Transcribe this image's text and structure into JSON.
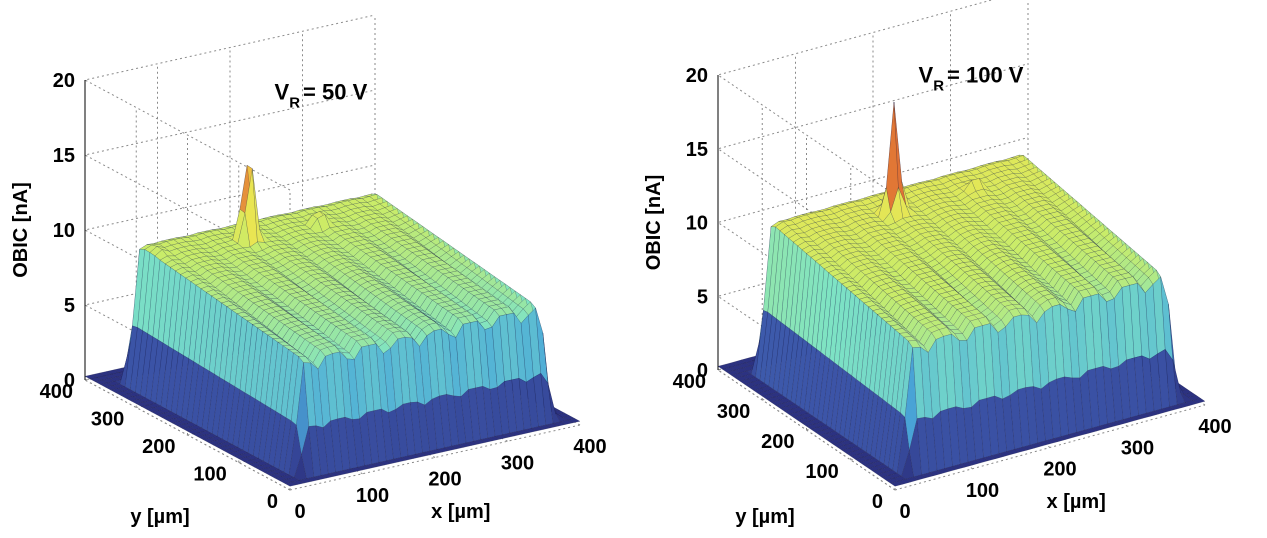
{
  "chart_data": [
    {
      "type": "surface3d",
      "zlabel": "OBIC [nA]",
      "xlabel": "x [µm]",
      "ylabel": "y [µm]",
      "annotation": {
        "main": "V",
        "subscript": "R",
        "value": "= 50 V"
      },
      "xlim": [
        0,
        400
      ],
      "ylim": [
        0,
        400
      ],
      "zlim": [
        0,
        20
      ],
      "x_ticks": [
        0,
        100,
        200,
        300,
        400
      ],
      "y_ticks": [
        0,
        100,
        200,
        300,
        400
      ],
      "z_ticks": [
        0,
        5,
        10,
        15,
        20
      ],
      "plateau_x_range": [
        20,
        385
      ],
      "plateau_y_range": [
        10,
        370
      ],
      "plateau_level_back": 9.5,
      "plateau_level_front": 7.5,
      "peaks": [
        {
          "x": 158,
          "y": 305,
          "z": 16.5
        },
        {
          "x": 255,
          "y": 305,
          "z": 10.5
        },
        {
          "x": 50,
          "y": 325,
          "z": 9.5
        }
      ],
      "colormap": [
        "#2a2e7c",
        "#3c55a8",
        "#4aa8d9",
        "#7ee3c4",
        "#c8ec6a",
        "#f4e34a",
        "#d63a2a"
      ]
    },
    {
      "type": "surface3d",
      "zlabel": "OBIC [nA]",
      "xlabel": "x [µm]",
      "ylabel": "y [µm]",
      "annotation": {
        "main": "V",
        "subscript": "R",
        "value": "= 100 V"
      },
      "xlim": [
        0,
        400
      ],
      "ylim": [
        0,
        400
      ],
      "zlim": [
        0,
        20
      ],
      "x_ticks": [
        0,
        100,
        200,
        300,
        400
      ],
      "y_ticks": [
        0,
        100,
        200,
        300,
        400
      ],
      "z_ticks": [
        0,
        5,
        10,
        15,
        20
      ],
      "plateau_x_range": [
        20,
        385
      ],
      "plateau_y_range": [
        10,
        370
      ],
      "plateau_level_back": 10.5,
      "plateau_level_front": 8.5,
      "peaks": [
        {
          "x": 170,
          "y": 300,
          "z": 17.5
        },
        {
          "x": 275,
          "y": 300,
          "z": 11.0
        }
      ],
      "colormap": [
        "#2a2e7c",
        "#3c55a8",
        "#4aa8d9",
        "#7ee3c4",
        "#c8ec6a",
        "#f4e34a",
        "#d63a2a"
      ]
    }
  ]
}
